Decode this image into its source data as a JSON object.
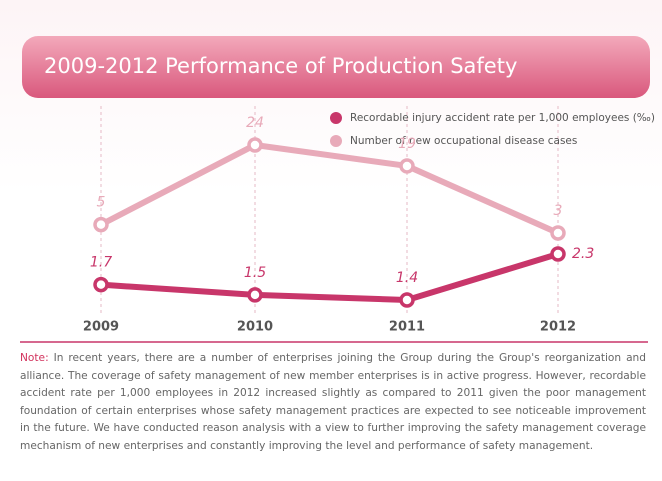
{
  "chart_data": {
    "type": "line",
    "title": "2009-2012 Performance of Production Safety",
    "categories": [
      "2009",
      "2010",
      "2011",
      "2012"
    ],
    "series": [
      {
        "name": "Recordable injury accident rate per 1,000 employees (‰)",
        "color": "#c8366a",
        "values": [
          1.7,
          1.5,
          1.4,
          2.3
        ]
      },
      {
        "name": "Number of new occupational disease cases",
        "color": "#e8aab9",
        "values": [
          5,
          24,
          19,
          3
        ]
      }
    ]
  },
  "note_label": "Note:",
  "note": "In recent years, there are a number of enterprises joining the Group during the Group's reorganization and alliance. The coverage of safety management of new member enterprises is in active progress. However, recordable accident rate per 1,000 employees in 2012 increased slightly as compared to 2011 given the poor management foundation of certain enterprises whose safety management practices are expected to see noticeable improvement in the future. We have conducted reason analysis with a view to further improving the safety management coverage mechanism of new enterprises and constantly improving the level and performance of safety management."
}
